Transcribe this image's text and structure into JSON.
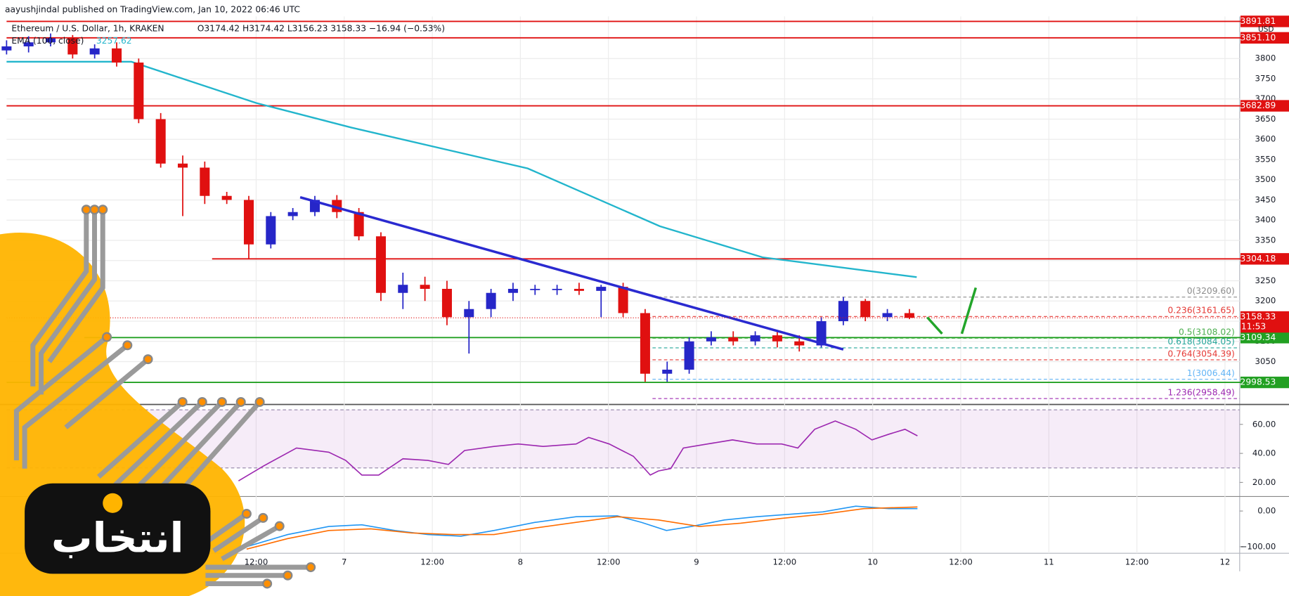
{
  "header": {
    "publisher": "aayushjindal published on TradingView.com, Jan 10, 2022 06:46 UTC",
    "symbol": "Ethereum / U.S. Dollar, 1h, KRAKEN",
    "ohlc": "O3174.42 H3174.42 L3156.23 3158.33 −16.94 (−0.53%)",
    "currency": "USD"
  },
  "watermark": {
    "text": "انتخاب"
  },
  "chart_data": [
    {
      "type": "candlestick",
      "xlim": [
        0,
        168
      ],
      "xticks": [
        {
          "value": 34,
          "label": "12:00"
        },
        {
          "value": 46,
          "label": "7"
        },
        {
          "value": 58,
          "label": "12:00"
        },
        {
          "value": 70,
          "label": "8"
        },
        {
          "value": 82,
          "label": "12:00"
        },
        {
          "value": 94,
          "label": "9"
        },
        {
          "value": 106,
          "label": "12:00"
        },
        {
          "value": 118,
          "label": "10"
        },
        {
          "value": 130,
          "label": "12:00"
        },
        {
          "value": 142,
          "label": "11"
        },
        {
          "value": 154,
          "label": "12:00"
        },
        {
          "value": 166,
          "label": "12"
        }
      ],
      "ylim": [
        2948,
        3900
      ],
      "yticks": [
        3050,
        3100,
        3150,
        3200,
        3250,
        3300,
        3350,
        3400,
        3450,
        3500,
        3550,
        3600,
        3650,
        3700,
        3750,
        3800
      ],
      "grid": true,
      "up_color": "#2626c8",
      "down_color": "#e01010",
      "x": [
        0,
        3,
        6,
        9,
        12,
        15,
        18,
        21,
        24,
        27,
        30,
        33,
        36,
        39,
        42,
        45,
        48,
        51,
        54,
        57,
        60,
        63,
        66,
        69,
        72,
        75,
        78,
        81,
        84,
        87,
        90,
        93,
        96,
        99,
        102,
        105,
        108,
        111,
        114,
        117,
        120,
        123
      ],
      "open": [
        3820,
        3830,
        3840,
        3850,
        3810,
        3825,
        3790,
        3650,
        3540,
        3530,
        3460,
        3450,
        3340,
        3410,
        3420,
        3450,
        3420,
        3360,
        3220,
        3240,
        3230,
        3160,
        3180,
        3220,
        3230,
        3230,
        3230,
        3225,
        3235,
        3170,
        3020,
        3030,
        3100,
        3110,
        3100,
        3115,
        3100,
        3090,
        3150,
        3200,
        3160,
        3170
      ],
      "high": [
        3845,
        3855,
        3862,
        3858,
        3835,
        3840,
        3800,
        3665,
        3560,
        3545,
        3470,
        3460,
        3420,
        3430,
        3460,
        3462,
        3430,
        3370,
        3270,
        3260,
        3250,
        3200,
        3230,
        3245,
        3240,
        3240,
        3245,
        3240,
        3245,
        3180,
        3050,
        3110,
        3125,
        3125,
        3125,
        3125,
        3115,
        3160,
        3210,
        3205,
        3180,
        3180
      ],
      "low": [
        3810,
        3815,
        3830,
        3800,
        3800,
        3780,
        3640,
        3530,
        3410,
        3440,
        3440,
        3305,
        3330,
        3400,
        3410,
        3405,
        3350,
        3200,
        3180,
        3200,
        3140,
        3070,
        3160,
        3200,
        3215,
        3215,
        3215,
        3160,
        3160,
        3000,
        3000,
        3020,
        3090,
        3090,
        3090,
        3085,
        3075,
        3085,
        3140,
        3150,
        3150,
        3155
      ],
      "close": [
        3830,
        3840,
        3850,
        3810,
        3825,
        3790,
        3650,
        3540,
        3530,
        3460,
        3450,
        3340,
        3410,
        3420,
        3450,
        3420,
        3360,
        3220,
        3240,
        3230,
        3160,
        3180,
        3220,
        3230,
        3230,
        3230,
        3225,
        3235,
        3170,
        3020,
        3030,
        3100,
        3110,
        3100,
        3115,
        3100,
        3090,
        3150,
        3200,
        3160,
        3170,
        3158.33
      ],
      "ema": {
        "name": "EMA (100, close)",
        "last": 3257.62,
        "color": "#22b5cc",
        "x": [
          0,
          17,
          34,
          47,
          71,
          89,
          103,
          124
        ],
        "values": [
          3792,
          3792,
          3690,
          3629,
          3528,
          3385,
          3308,
          3259
        ]
      },
      "trendline": {
        "color": "#2a2ad0",
        "x": [
          40,
          114
        ],
        "values": [
          3456.6,
          3080
        ]
      },
      "levels": [
        {
          "price": 3891.81,
          "color": "#e01010",
          "start": 0
        },
        {
          "price": 3851.1,
          "price_label": "3851.10",
          "color": "#e01010",
          "start": 0
        },
        {
          "price": 3682.89,
          "color": "#e01010",
          "start": 0
        },
        {
          "price": 3304.18,
          "color": "#e01010",
          "start": 28
        },
        {
          "price": 3109.34,
          "color": "#22a022",
          "start": 10.6
        },
        {
          "price": 2998.53,
          "color": "#22a022",
          "start": 0
        }
      ],
      "fib": {
        "start": 88,
        "levels": [
          {
            "label": "0(3209.60)",
            "value": 3209.6,
            "color": "#8c8c8c"
          },
          {
            "label": "0.236(3161.65)",
            "value": 3161.65,
            "color": "#e53935"
          },
          {
            "label": "0.5(3108.02)",
            "value": 3108.02,
            "color": "#4caf50"
          },
          {
            "label": "0.618(3084.05)",
            "value": 3084.05,
            "color": "#26a69a"
          },
          {
            "label": "0.764(3054.39)",
            "value": 3054.39,
            "color": "#e53935"
          },
          {
            "label": "1(3006.44)",
            "value": 3006.44,
            "color": "#64b5f6"
          },
          {
            "label": "1.236(2958.49)",
            "value": 2958.49,
            "color": "#9c27b0"
          }
        ]
      },
      "last_price": {
        "value": 3158.33,
        "countdown": "11:53"
      }
    },
    {
      "type": "line",
      "ylim": [
        12,
        72
      ],
      "yticks": [
        {
          "value": 20,
          "label": "20.00"
        },
        {
          "value": 40,
          "label": "40.00"
        },
        {
          "value": 60,
          "label": "60.00"
        }
      ],
      "band": [
        30,
        70
      ],
      "series": [
        {
          "color": "#9c27b0",
          "x": [
            31.6,
            35.0,
            39.5,
            43.9,
            46.2,
            48.4,
            50.7,
            54.0,
            57.4,
            60.2,
            62.4,
            66.4,
            69.7,
            73.1,
            77.6,
            79.3,
            82.1,
            85.4,
            87.7,
            88.8,
            90.5,
            92.2,
            95.5,
            98.9,
            102.2,
            105.6,
            107.8,
            110.1,
            112.9,
            115.7,
            117.9,
            120.2,
            122.4,
            124.1
          ],
          "values": [
            21.1,
            31.3,
            43.7,
            40.8,
            35.2,
            25.1,
            25.1,
            36.3,
            35.2,
            32.4,
            42.0,
            44.8,
            46.5,
            44.8,
            46.5,
            51.0,
            46.5,
            38.0,
            25.1,
            27.9,
            29.6,
            43.7,
            46.5,
            49.3,
            46.5,
            46.5,
            43.7,
            56.6,
            62.3,
            56.6,
            49.3,
            53.2,
            56.6,
            52.1
          ]
        }
      ]
    },
    {
      "type": "line",
      "ylim": [
        -116,
        36
      ],
      "yticks": [
        {
          "value": -100,
          "label": "−100.00"
        },
        {
          "value": 0,
          "label": "0.00"
        }
      ],
      "series": [
        {
          "color": "#2196f3",
          "x": [
            32.7,
            38.3,
            43.9,
            48.4,
            52.9,
            57.4,
            61.9,
            66.4,
            72.0,
            77.6,
            83.2,
            86.5,
            89.9,
            93.3,
            97.8,
            102.2,
            106.7,
            111.2,
            115.7,
            120.2,
            124.1
          ],
          "values": [
            -100,
            -65.9,
            -43.2,
            -38.6,
            -54.5,
            -65.9,
            -70.5,
            -54.5,
            -31.8,
            -15.9,
            -13.6,
            -31.8,
            -54.5,
            -43.2,
            -25.0,
            -15.9,
            -9.1,
            -2.3,
            13.6,
            6.8,
            6.8
          ]
        },
        {
          "color": "#ff6d00",
          "x": [
            32.7,
            38.3,
            43.9,
            49.6,
            55.2,
            60.8,
            66.4,
            72.0,
            77.6,
            83.2,
            88.8,
            94.4,
            100.0,
            105.6,
            111.2,
            116.8,
            124.1
          ],
          "values": [
            -106.8,
            -77.3,
            -54.5,
            -50,
            -61.4,
            -65.9,
            -65.9,
            -47.7,
            -31.8,
            -15.9,
            -25,
            -43.2,
            -34.1,
            -20.5,
            -9.1,
            6.8,
            11.4
          ]
        }
      ]
    }
  ]
}
